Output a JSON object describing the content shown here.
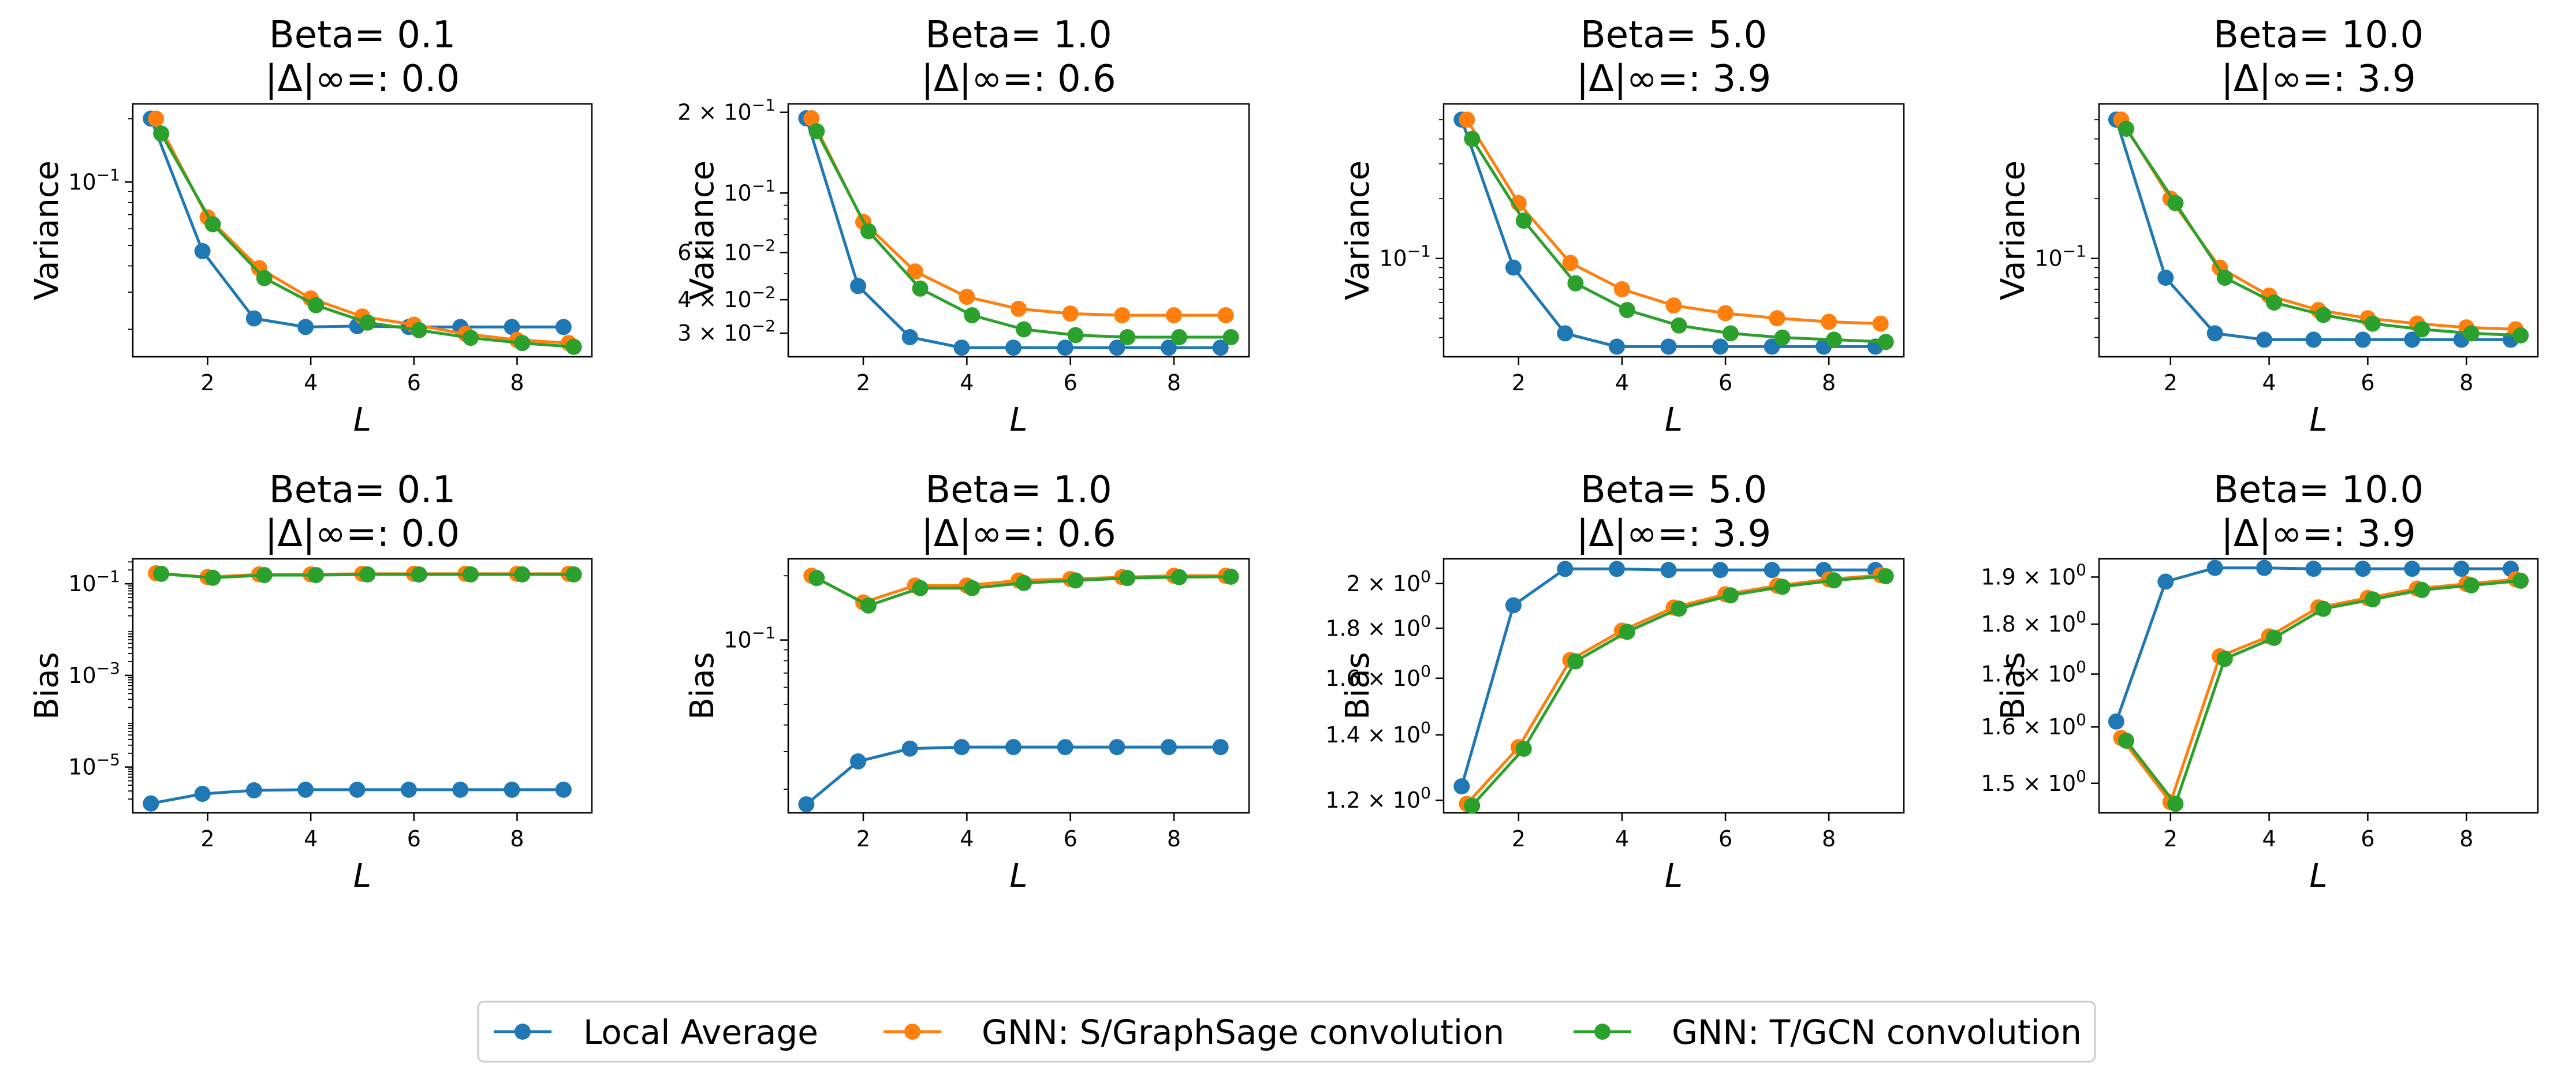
{
  "colors": {
    "local": "#1f77b4",
    "sage": "#ff7f0e",
    "gcn": "#2ca02c"
  },
  "legend": {
    "items": [
      {
        "key": "local",
        "label": "Local Average"
      },
      {
        "key": "sage",
        "label": "GNN: S/GraphSage convolution"
      },
      {
        "key": "gcn",
        "label": "GNN: T/GCN convolution"
      }
    ]
  },
  "chart_data": [
    {
      "type": "line",
      "title_line1": "Beta= 0.1",
      "title_line2": "|Δ|∞=: 0.0",
      "xlabel": "L",
      "ylabel": "Variance",
      "yscale": "log",
      "ylim": [
        0.0148,
        0.235
      ],
      "xlim": [
        0.55,
        9.45
      ],
      "xticks": [
        2,
        4,
        6,
        8
      ],
      "yticks": [
        {
          "value": 0.1,
          "label": "10",
          "sup": "−1"
        }
      ],
      "x": [
        1,
        2,
        3,
        4,
        5,
        6,
        7,
        8,
        9
      ],
      "series": [
        {
          "key": "local",
          "offset": -0.1,
          "values": [
            0.2,
            0.047,
            0.0225,
            0.0205,
            0.0207,
            0.0205,
            0.0205,
            0.0205,
            0.0205
          ]
        },
        {
          "key": "sage",
          "offset": 0.0,
          "values": [
            0.2,
            0.068,
            0.039,
            0.028,
            0.023,
            0.021,
            0.019,
            0.0178,
            0.0172
          ]
        },
        {
          "key": "gcn",
          "offset": 0.1,
          "values": [
            0.17,
            0.063,
            0.035,
            0.026,
            0.0215,
            0.0198,
            0.0182,
            0.0172,
            0.0165
          ]
        }
      ]
    },
    {
      "type": "line",
      "title_line1": "Beta= 1.0",
      "title_line2": "|Δ|∞=: 0.6",
      "xlabel": "L",
      "ylabel": "Variance",
      "yscale": "log",
      "ylim": [
        0.0245,
        0.215
      ],
      "xlim": [
        0.55,
        9.45
      ],
      "xticks": [
        2,
        4,
        6,
        8
      ],
      "yticks": [
        {
          "value": 0.2,
          "label": "2 × 10",
          "sup": "−1"
        },
        {
          "value": 0.1,
          "label": "10",
          "sup": "−1"
        },
        {
          "value": 0.06,
          "label": "6 × 10",
          "sup": "−2"
        },
        {
          "value": 0.04,
          "label": "4 × 10",
          "sup": "−2"
        },
        {
          "value": 0.03,
          "label": "3 × 10",
          "sup": "−2"
        }
      ],
      "x": [
        1,
        2,
        3,
        4,
        5,
        6,
        7,
        8,
        9
      ],
      "series": [
        {
          "key": "local",
          "offset": -0.1,
          "values": [
            0.19,
            0.045,
            0.029,
            0.0265,
            0.0265,
            0.0265,
            0.0265,
            0.0265,
            0.0265
          ]
        },
        {
          "key": "sage",
          "offset": 0.0,
          "values": [
            0.19,
            0.078,
            0.051,
            0.041,
            0.037,
            0.0355,
            0.035,
            0.035,
            0.035
          ]
        },
        {
          "key": "gcn",
          "offset": 0.1,
          "values": [
            0.17,
            0.072,
            0.044,
            0.035,
            0.031,
            0.0295,
            0.029,
            0.029,
            0.029
          ]
        }
      ]
    },
    {
      "type": "line",
      "title_line1": "Beta= 5.0",
      "title_line2": "|Δ|∞=: 3.9",
      "xlabel": "L",
      "ylabel": "Variance",
      "yscale": "log",
      "ylim": [
        0.032,
        0.6
      ],
      "xlim": [
        0.55,
        9.45
      ],
      "xticks": [
        2,
        4,
        6,
        8
      ],
      "yticks": [
        {
          "value": 0.1,
          "label": "10",
          "sup": "−1"
        }
      ],
      "x": [
        1,
        2,
        3,
        4,
        5,
        6,
        7,
        8,
        9
      ],
      "series": [
        {
          "key": "local",
          "offset": -0.1,
          "values": [
            0.5,
            0.09,
            0.042,
            0.036,
            0.036,
            0.036,
            0.036,
            0.036,
            0.036
          ]
        },
        {
          "key": "sage",
          "offset": 0.0,
          "values": [
            0.5,
            0.19,
            0.095,
            0.07,
            0.058,
            0.053,
            0.05,
            0.048,
            0.047
          ]
        },
        {
          "key": "gcn",
          "offset": 0.1,
          "values": [
            0.4,
            0.155,
            0.075,
            0.055,
            0.046,
            0.042,
            0.04,
            0.039,
            0.038
          ]
        }
      ]
    },
    {
      "type": "line",
      "title_line1": "Beta= 10.0",
      "title_line2": "|Δ|∞=: 3.9",
      "xlabel": "L",
      "ylabel": "Variance",
      "yscale": "log",
      "ylim": [
        0.032,
        0.6
      ],
      "xlim": [
        0.55,
        9.45
      ],
      "xticks": [
        2,
        4,
        6,
        8
      ],
      "yticks": [
        {
          "value": 0.1,
          "label": "10",
          "sup": "−1"
        }
      ],
      "x": [
        1,
        2,
        3,
        4,
        5,
        6,
        7,
        8,
        9
      ],
      "series": [
        {
          "key": "local",
          "offset": -0.1,
          "values": [
            0.5,
            0.08,
            0.042,
            0.039,
            0.039,
            0.039,
            0.039,
            0.039,
            0.039
          ]
        },
        {
          "key": "sage",
          "offset": 0.0,
          "values": [
            0.5,
            0.2,
            0.09,
            0.065,
            0.055,
            0.05,
            0.047,
            0.045,
            0.044
          ]
        },
        {
          "key": "gcn",
          "offset": 0.1,
          "values": [
            0.45,
            0.19,
            0.08,
            0.06,
            0.052,
            0.047,
            0.044,
            0.042,
            0.041
          ]
        }
      ]
    },
    {
      "type": "line",
      "title_line1": "Beta= 0.1",
      "title_line2": "|Δ|∞=: 0.0",
      "xlabel": "L",
      "ylabel": "Bias",
      "yscale": "log",
      "ylim": [
        1e-06,
        0.35
      ],
      "xlim": [
        0.55,
        9.45
      ],
      "xticks": [
        2,
        4,
        6,
        8
      ],
      "yticks": [
        {
          "value": 0.1,
          "label": "10",
          "sup": "−1"
        },
        {
          "value": 0.001,
          "label": "10",
          "sup": "−3"
        },
        {
          "value": 1e-05,
          "label": "10",
          "sup": "−5"
        }
      ],
      "x": [
        1,
        2,
        3,
        4,
        5,
        6,
        7,
        8,
        9
      ],
      "series": [
        {
          "key": "local",
          "offset": -0.1,
          "values": [
            1.6e-06,
            2.6e-06,
            3.1e-06,
            3.2e-06,
            3.2e-06,
            3.2e-06,
            3.2e-06,
            3.2e-06,
            3.2e-06
          ]
        },
        {
          "key": "sage",
          "offset": 0.0,
          "values": [
            0.17,
            0.14,
            0.16,
            0.16,
            0.165,
            0.165,
            0.165,
            0.165,
            0.165
          ]
        },
        {
          "key": "gcn",
          "offset": 0.1,
          "values": [
            0.165,
            0.135,
            0.155,
            0.155,
            0.16,
            0.16,
            0.16,
            0.16,
            0.16
          ]
        }
      ]
    },
    {
      "type": "line",
      "title_line1": "Beta= 1.0",
      "title_line2": "|Δ|∞=: 0.6",
      "xlabel": "L",
      "ylabel": "Bias",
      "yscale": "log",
      "ylim": [
        0.0155,
        0.24
      ],
      "xlim": [
        0.55,
        9.45
      ],
      "xticks": [
        2,
        4,
        6,
        8
      ],
      "yticks": [
        {
          "value": 0.1,
          "label": "10",
          "sup": "−1"
        }
      ],
      "x": [
        1,
        2,
        3,
        4,
        5,
        6,
        7,
        8,
        9
      ],
      "series": [
        {
          "key": "local",
          "offset": -0.1,
          "values": [
            0.017,
            0.027,
            0.031,
            0.0315,
            0.0315,
            0.0315,
            0.0315,
            0.0315,
            0.0315
          ]
        },
        {
          "key": "sage",
          "offset": 0.0,
          "values": [
            0.2,
            0.15,
            0.18,
            0.18,
            0.19,
            0.193,
            0.197,
            0.2,
            0.2
          ]
        },
        {
          "key": "gcn",
          "offset": 0.1,
          "values": [
            0.195,
            0.145,
            0.175,
            0.175,
            0.185,
            0.19,
            0.195,
            0.197,
            0.198
          ]
        }
      ]
    },
    {
      "type": "line",
      "title_line1": "Beta= 5.0",
      "title_line2": "|Δ|∞=: 3.9",
      "xlabel": "L",
      "ylabel": "Bias",
      "yscale": "log",
      "ylim": [
        1.165,
        2.12
      ],
      "xlim": [
        0.55,
        9.45
      ],
      "xticks": [
        2,
        4,
        6,
        8
      ],
      "yticks": [
        {
          "value": 2.0,
          "label": "2 × 10",
          "sup": "0"
        },
        {
          "value": 1.8,
          "label": "1.8 × 10",
          "sup": "0"
        },
        {
          "value": 1.6,
          "label": "1.6 × 10",
          "sup": "0"
        },
        {
          "value": 1.4,
          "label": "1.4 × 10",
          "sup": "0"
        },
        {
          "value": 1.2,
          "label": "1.2 × 10",
          "sup": "0"
        }
      ],
      "x": [
        1,
        2,
        3,
        4,
        5,
        6,
        7,
        8,
        9
      ],
      "series": [
        {
          "key": "local",
          "offset": -0.1,
          "values": [
            1.24,
            1.9,
            2.07,
            2.07,
            2.065,
            2.065,
            2.065,
            2.065,
            2.065
          ]
        },
        {
          "key": "sage",
          "offset": 0.0,
          "values": [
            1.19,
            1.36,
            1.67,
            1.79,
            1.89,
            1.95,
            1.99,
            2.02,
            2.04
          ]
        },
        {
          "key": "gcn",
          "offset": 0.1,
          "values": [
            1.185,
            1.355,
            1.665,
            1.785,
            1.885,
            1.945,
            1.985,
            2.015,
            2.035
          ]
        }
      ]
    },
    {
      "type": "line",
      "title_line1": "Beta= 10.0",
      "title_line2": "|Δ|∞=: 3.9",
      "xlabel": "L",
      "ylabel": "Bias",
      "yscale": "log",
      "ylim": [
        1.45,
        1.94
      ],
      "xlim": [
        0.55,
        9.45
      ],
      "xticks": [
        2,
        4,
        6,
        8
      ],
      "yticks": [
        {
          "value": 1.9,
          "label": "1.9 × 10",
          "sup": "0"
        },
        {
          "value": 1.8,
          "label": "1.8 × 10",
          "sup": "0"
        },
        {
          "value": 1.7,
          "label": "1.7 × 10",
          "sup": "0"
        },
        {
          "value": 1.6,
          "label": "1.6 × 10",
          "sup": "0"
        },
        {
          "value": 1.5,
          "label": "1.5 × 10",
          "sup": "0"
        }
      ],
      "x": [
        1,
        2,
        3,
        4,
        5,
        6,
        7,
        8,
        9
      ],
      "series": [
        {
          "key": "local",
          "offset": -0.1,
          "values": [
            1.61,
            1.89,
            1.92,
            1.92,
            1.918,
            1.918,
            1.918,
            1.918,
            1.918
          ]
        },
        {
          "key": "sage",
          "offset": 0.0,
          "values": [
            1.58,
            1.468,
            1.735,
            1.775,
            1.835,
            1.855,
            1.875,
            1.885,
            1.895
          ]
        },
        {
          "key": "gcn",
          "offset": 0.1,
          "values": [
            1.575,
            1.465,
            1.73,
            1.772,
            1.832,
            1.852,
            1.872,
            1.882,
            1.892
          ]
        }
      ]
    }
  ]
}
